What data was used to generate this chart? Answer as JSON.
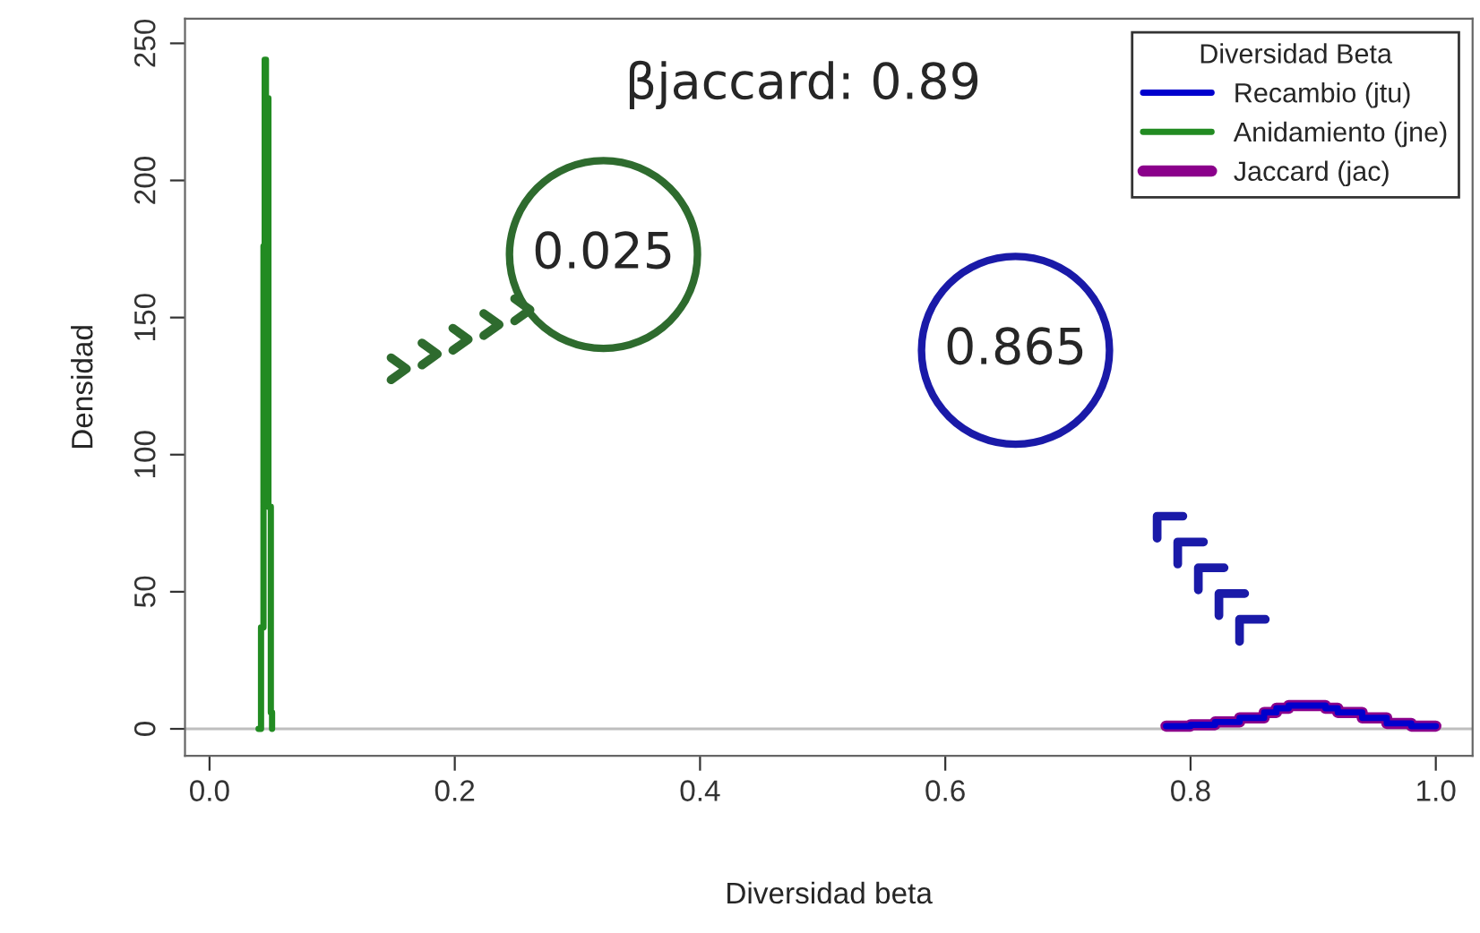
{
  "chart_data": {
    "type": "step",
    "xlabel": "Diversidad beta",
    "ylabel": "Densidad",
    "legend_title": "Diversidad Beta",
    "legend": "top right",
    "grid": false,
    "xlim": [
      -0.02,
      1.03
    ],
    "ylim": [
      -9.8,
      259
    ],
    "xticks": [
      {
        "value": 0,
        "label": "0.0"
      },
      0.2,
      0.4,
      0.6,
      0.8,
      {
        "value": 1,
        "label": "1.0"
      }
    ],
    "yticks": [
      0,
      50,
      100,
      150,
      200,
      250
    ],
    "series": [
      {
        "name": "Recambio (jtu)",
        "color": "#0000cd",
        "x": [
          0.78,
          0.8,
          0.82,
          0.84,
          0.86,
          0.87,
          0.88,
          0.9,
          0.91,
          0.92,
          0.94,
          0.96,
          0.98,
          1.0
        ],
        "values": [
          1,
          1.5,
          2.5,
          4,
          6,
          7.5,
          8.5,
          8.5,
          7.5,
          6,
          4,
          2,
          1,
          1
        ]
      },
      {
        "name": "Anidamiento (jne)",
        "color": "#228b22",
        "x": [
          0.04,
          0.042,
          0.044,
          0.045,
          0.046,
          0.048,
          0.05,
          0.051
        ],
        "values": [
          0,
          37,
          176,
          244,
          230,
          81,
          6,
          0
        ]
      },
      {
        "name": "Jaccard (jac)",
        "color": "#8b008b",
        "x": [
          0.78,
          0.8,
          0.82,
          0.84,
          0.86,
          0.87,
          0.88,
          0.9,
          0.91,
          0.92,
          0.94,
          0.96,
          0.98,
          1.0
        ],
        "values": [
          1,
          1.5,
          2.5,
          4,
          6,
          7.5,
          8.5,
          8.5,
          7.5,
          6,
          4,
          2,
          1,
          1
        ]
      }
    ],
    "ref_lines": [
      {
        "axis": "y",
        "value": 0,
        "color": "#bebebe"
      }
    ],
    "annotations": [
      "βjaccard: 0.89",
      "0.025",
      "0.865"
    ]
  }
}
